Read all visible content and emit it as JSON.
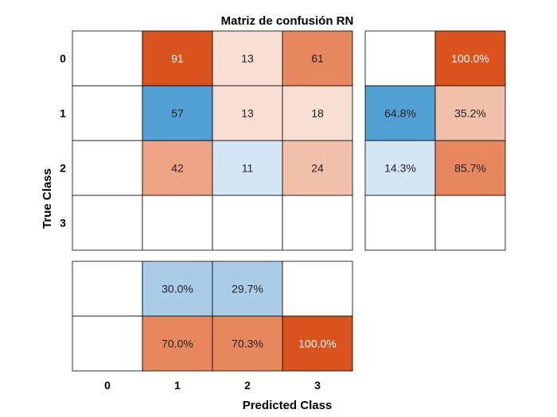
{
  "chart_data": {
    "type": "heatmap",
    "title": "Matriz de confusión RN",
    "xlabel": "Predicted Class",
    "ylabel": "True Class",
    "classes": [
      "0",
      "1",
      "2",
      "3"
    ],
    "matrix": [
      [
        null,
        91,
        13,
        61
      ],
      [
        null,
        57,
        13,
        18
      ],
      [
        null,
        42,
        11,
        24
      ],
      [
        null,
        null,
        null,
        null
      ]
    ],
    "row_summary": [
      [
        "",
        "100.0%"
      ],
      [
        "64.8%",
        "35.2%"
      ],
      [
        "14.3%",
        "85.7%"
      ],
      [
        "",
        ""
      ]
    ],
    "column_summary": [
      [
        "",
        "30.0%",
        "29.7%",
        ""
      ],
      [
        "",
        "70.0%",
        "70.3%",
        "100.0%"
      ]
    ],
    "colors": {
      "orange_strong": "#d9531e",
      "orange_mid": "#e6875f",
      "orange_light": "#eda384",
      "peach": "#f2c1ac",
      "peach_pale": "#f8ddd3",
      "blue_strong": "#519fd3",
      "blue_light": "#a9cde8",
      "blue_pale": "#d4e6f4",
      "white": "#ffffff"
    },
    "cell_colors": [
      [
        "white",
        "orange_strong",
        "peach_pale",
        "orange_mid"
      ],
      [
        "white",
        "blue_strong",
        "peach_pale",
        "peach_pale"
      ],
      [
        "white",
        "orange_light",
        "blue_pale",
        "peach"
      ],
      [
        "white",
        "white",
        "white",
        "white"
      ]
    ],
    "row_summary_colors": [
      [
        "white",
        "orange_strong"
      ],
      [
        "blue_strong",
        "peach"
      ],
      [
        "blue_pale",
        "orange_mid"
      ],
      [
        "white",
        "white"
      ]
    ],
    "column_summary_colors": [
      [
        "white",
        "blue_light",
        "blue_light",
        "white"
      ],
      [
        "white",
        "orange_mid",
        "orange_mid",
        "orange_strong"
      ]
    ]
  }
}
